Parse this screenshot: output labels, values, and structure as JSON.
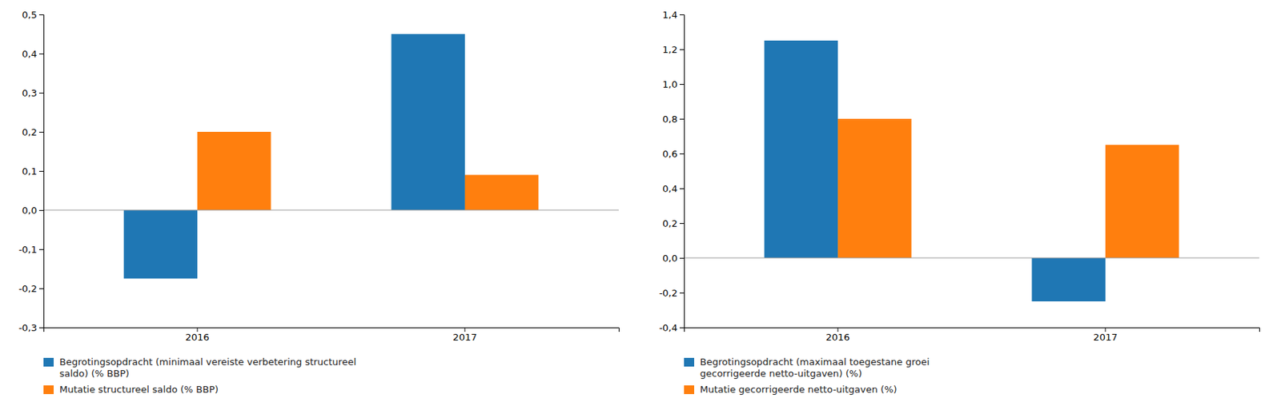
{
  "chart_data": [
    {
      "type": "bar",
      "categories": [
        "2016",
        "2017"
      ],
      "series": [
        {
          "name": "Begrotingsopdracht (minimaal vereiste verbetering structureel\nsaldo) (% BBP)",
          "values": [
            -0.175,
            0.45
          ]
        },
        {
          "name": "Mutatie structureel saldo (% BBP)",
          "values": [
            0.2,
            0.09
          ]
        }
      ],
      "ylim": [
        -0.3,
        0.5
      ],
      "yticks": [
        {
          "value": -0.3,
          "label": "-0,3"
        },
        {
          "value": -0.2,
          "label": "-0,2"
        },
        {
          "value": -0.1,
          "label": "-0,1"
        },
        {
          "value": 0.0,
          "label": "0,0"
        },
        {
          "value": 0.1,
          "label": "0,1"
        },
        {
          "value": 0.2,
          "label": "0,2"
        },
        {
          "value": 0.3,
          "label": "0,3"
        },
        {
          "value": 0.4,
          "label": "0,4"
        },
        {
          "value": 0.5,
          "label": "0,5"
        }
      ],
      "grid": false,
      "legend": "bottom"
    },
    {
      "type": "bar",
      "categories": [
        "2016",
        "2017"
      ],
      "series": [
        {
          "name": "Begrotingsopdracht (maximaal toegestane groei\ngecorrigeerde netto-uitgaven) (%)",
          "values": [
            1.25,
            -0.25
          ]
        },
        {
          "name": "Mutatie gecorrigeerde netto-uitgaven (%)",
          "values": [
            0.8,
            0.65
          ]
        }
      ],
      "ylim": [
        -0.4,
        1.4
      ],
      "yticks": [
        {
          "value": -0.4,
          "label": "-0,4"
        },
        {
          "value": -0.2,
          "label": "-0,2"
        },
        {
          "value": 0.0,
          "label": "0,0"
        },
        {
          "value": 0.2,
          "label": "0,2"
        },
        {
          "value": 0.4,
          "label": "0,4"
        },
        {
          "value": 0.6,
          "label": "0,6"
        },
        {
          "value": 0.8,
          "label": "0,8"
        },
        {
          "value": 1.0,
          "label": "1,0"
        },
        {
          "value": 1.2,
          "label": "1,2"
        },
        {
          "value": 1.4,
          "label": "1,4"
        }
      ],
      "grid": false,
      "legend": "bottom"
    }
  ]
}
